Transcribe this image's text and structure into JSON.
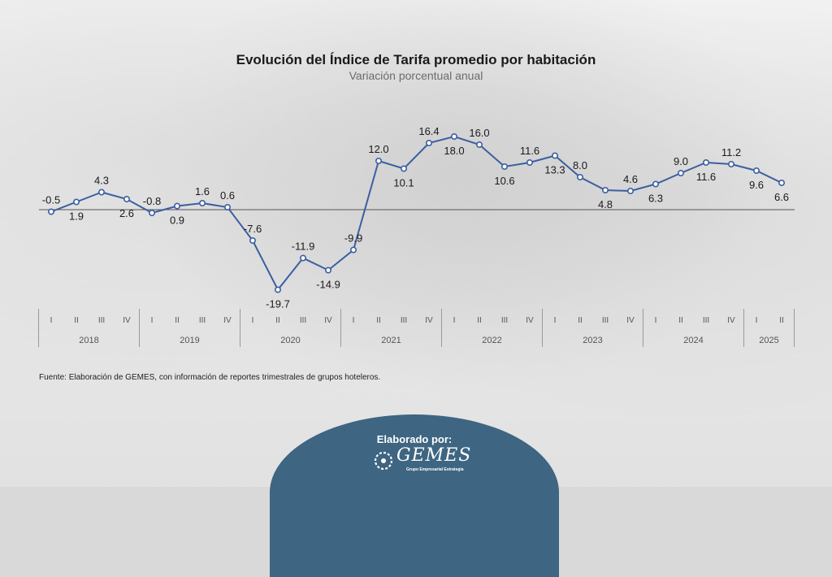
{
  "title": "Evolución del Índice de Tarifa promedio por habitación",
  "subtitle": "Variación porcentual anual",
  "source": "Fuente: Elaboración de GEMES, con información de reportes trimestrales de grupos hoteleros.",
  "badge": {
    "title": "Elaborado por:",
    "logo_word": "GEMES",
    "logo_tagline": "Grupo Empresarial Estrategia"
  },
  "colors": {
    "line": "#3b5fa0",
    "axis": "#555555",
    "badge": "#3e6581"
  },
  "chart_data": {
    "type": "line",
    "title": "Evolución del Índice de Tarifa promedio por habitación",
    "subtitle": "Variación porcentual anual",
    "categories": [
      "I",
      "II",
      "III",
      "IV",
      "I",
      "II",
      "III",
      "IV",
      "I",
      "II",
      "III",
      "IV",
      "I",
      "II",
      "III",
      "IV",
      "I",
      "II",
      "III",
      "IV",
      "I",
      "II",
      "III",
      "IV",
      "I",
      "II",
      "III",
      "IV",
      "I",
      "II"
    ],
    "years": [
      {
        "label": "2018",
        "quarters": 4
      },
      {
        "label": "2019",
        "quarters": 4
      },
      {
        "label": "2020",
        "quarters": 4
      },
      {
        "label": "2021",
        "quarters": 4
      },
      {
        "label": "2022",
        "quarters": 4
      },
      {
        "label": "2023",
        "quarters": 4
      },
      {
        "label": "2024",
        "quarters": 4
      },
      {
        "label": "2025",
        "quarters": 2
      }
    ],
    "series": [
      {
        "values": [
          -0.5,
          1.9,
          4.3,
          2.6,
          -0.8,
          0.9,
          1.6,
          0.6,
          -7.6,
          -19.7,
          -11.9,
          -14.9,
          -9.9,
          12.0,
          10.1,
          16.4,
          18.0,
          16.0,
          10.6,
          11.6,
          13.3,
          8.0,
          4.8,
          4.6,
          6.3,
          9.0,
          11.6,
          11.2,
          9.6,
          6.6
        ]
      }
    ],
    "label_position": [
      "above",
      "below",
      "above",
      "below",
      "above",
      "below",
      "above",
      "above",
      "above",
      "below",
      "above",
      "below",
      "above",
      "above",
      "below",
      "above",
      "below",
      "above",
      "below",
      "above",
      "below",
      "above",
      "below",
      "above",
      "below",
      "above",
      "below",
      "above",
      "below",
      "below"
    ],
    "ylim": [
      -22,
      20
    ],
    "grid": false,
    "legend": "none"
  }
}
